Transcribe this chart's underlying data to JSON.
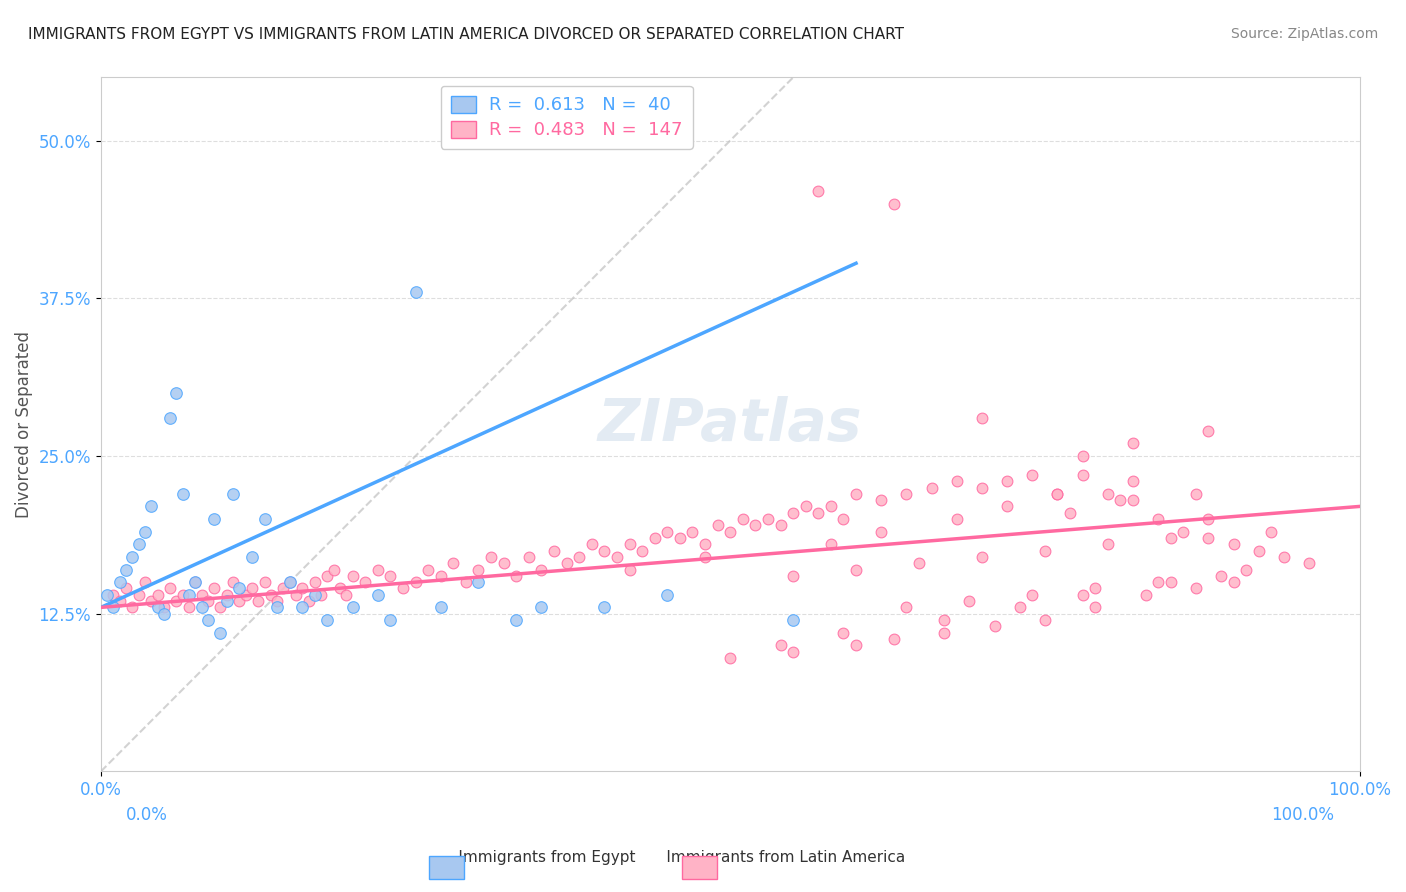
{
  "title": "IMMIGRANTS FROM EGYPT VS IMMIGRANTS FROM LATIN AMERICA DIVORCED OR SEPARATED CORRELATION CHART",
  "source": "Source: ZipAtlas.com",
  "ylabel": "Divorced or Separated",
  "xlabel": "",
  "watermark": "ZIPatlas",
  "legend_egypt": "R =  0.613   N =  40",
  "legend_latin": "R =  0.483   N =  147",
  "r_egypt": 0.613,
  "n_egypt": 40,
  "r_latin": 0.483,
  "n_latin": 147,
  "xlim": [
    0,
    100
  ],
  "ylim": [
    0,
    55
  ],
  "yticks": [
    12.5,
    25.0,
    37.5,
    50.0
  ],
  "xticks": [
    0,
    100
  ],
  "color_egypt": "#a8c8f0",
  "color_egypt_line": "#4da6ff",
  "color_latin": "#ffb3c6",
  "color_latin_line": "#ff69a0",
  "color_diag": "#c0c0c0",
  "background": "#ffffff",
  "egypt_x": [
    0.5,
    1.0,
    1.5,
    2.0,
    2.5,
    3.0,
    3.5,
    4.0,
    4.5,
    5.0,
    5.5,
    6.0,
    6.5,
    7.0,
    7.5,
    8.0,
    8.5,
    9.0,
    9.5,
    10.0,
    10.5,
    11.0,
    12.0,
    13.0,
    14.0,
    15.0,
    16.0,
    17.0,
    18.0,
    20.0,
    22.0,
    23.0,
    25.0,
    27.0,
    30.0,
    33.0,
    35.0,
    40.0,
    45.0,
    55.0
  ],
  "egypt_y": [
    14.0,
    13.0,
    15.0,
    16.0,
    17.0,
    18.0,
    19.0,
    21.0,
    13.0,
    12.5,
    28.0,
    30.0,
    22.0,
    14.0,
    15.0,
    13.0,
    12.0,
    20.0,
    11.0,
    13.5,
    22.0,
    14.5,
    17.0,
    20.0,
    13.0,
    15.0,
    13.0,
    14.0,
    12.0,
    13.0,
    14.0,
    12.0,
    38.0,
    13.0,
    15.0,
    12.0,
    13.0,
    13.0,
    14.0,
    12.0
  ],
  "latin_x": [
    1.0,
    1.5,
    2.0,
    2.5,
    3.0,
    3.5,
    4.0,
    4.5,
    5.0,
    5.5,
    6.0,
    6.5,
    7.0,
    7.5,
    8.0,
    8.5,
    9.0,
    9.5,
    10.0,
    10.5,
    11.0,
    11.5,
    12.0,
    12.5,
    13.0,
    13.5,
    14.0,
    14.5,
    15.0,
    15.5,
    16.0,
    16.5,
    17.0,
    17.5,
    18.0,
    18.5,
    19.0,
    19.5,
    20.0,
    21.0,
    22.0,
    23.0,
    24.0,
    25.0,
    26.0,
    27.0,
    28.0,
    29.0,
    30.0,
    31.0,
    32.0,
    33.0,
    34.0,
    35.0,
    36.0,
    37.0,
    38.0,
    39.0,
    40.0,
    41.0,
    42.0,
    43.0,
    44.0,
    45.0,
    46.0,
    47.0,
    48.0,
    49.0,
    50.0,
    51.0,
    52.0,
    53.0,
    54.0,
    55.0,
    56.0,
    57.0,
    58.0,
    59.0,
    60.0,
    62.0,
    64.0,
    66.0,
    68.0,
    70.0,
    72.0,
    74.0,
    76.0,
    78.0,
    80.0,
    82.0,
    84.0,
    86.0,
    88.0,
    90.0,
    92.0,
    94.0,
    96.0,
    78.0,
    82.0,
    88.0,
    50.0,
    55.0,
    60.0,
    63.0,
    67.0,
    71.0,
    75.0,
    79.0,
    83.0,
    87.0,
    55.0,
    60.0,
    65.0,
    70.0,
    75.0,
    80.0,
    85.0,
    90.0,
    42.0,
    48.0,
    58.0,
    62.0,
    68.0,
    72.0,
    77.0,
    82.0,
    87.0,
    64.0,
    69.0,
    74.0,
    79.0,
    84.0,
    89.0,
    54.0,
    59.0,
    67.0,
    73.0,
    78.0,
    85.0,
    91.0,
    57.0,
    63.0,
    70.0,
    76.0,
    81.0,
    88.0,
    93.0
  ],
  "latin_y": [
    14.0,
    13.5,
    14.5,
    13.0,
    14.0,
    15.0,
    13.5,
    14.0,
    13.0,
    14.5,
    13.5,
    14.0,
    13.0,
    15.0,
    14.0,
    13.5,
    14.5,
    13.0,
    14.0,
    15.0,
    13.5,
    14.0,
    14.5,
    13.5,
    15.0,
    14.0,
    13.5,
    14.5,
    15.0,
    14.0,
    14.5,
    13.5,
    15.0,
    14.0,
    15.5,
    16.0,
    14.5,
    14.0,
    15.5,
    15.0,
    16.0,
    15.5,
    14.5,
    15.0,
    16.0,
    15.5,
    16.5,
    15.0,
    16.0,
    17.0,
    16.5,
    15.5,
    17.0,
    16.0,
    17.5,
    16.5,
    17.0,
    18.0,
    17.5,
    17.0,
    18.0,
    17.5,
    18.5,
    19.0,
    18.5,
    19.0,
    18.0,
    19.5,
    19.0,
    20.0,
    19.5,
    20.0,
    19.5,
    20.5,
    21.0,
    20.5,
    21.0,
    20.0,
    22.0,
    21.5,
    22.0,
    22.5,
    23.0,
    22.5,
    23.0,
    23.5,
    22.0,
    23.5,
    22.0,
    23.0,
    20.0,
    19.0,
    18.5,
    18.0,
    17.5,
    17.0,
    16.5,
    25.0,
    26.0,
    27.0,
    9.0,
    9.5,
    10.0,
    10.5,
    11.0,
    11.5,
    12.0,
    13.0,
    14.0,
    14.5,
    15.5,
    16.0,
    16.5,
    17.0,
    17.5,
    18.0,
    18.5,
    15.0,
    16.0,
    17.0,
    18.0,
    19.0,
    20.0,
    21.0,
    20.5,
    21.5,
    22.0,
    13.0,
    13.5,
    14.0,
    14.5,
    15.0,
    15.5,
    10.0,
    11.0,
    12.0,
    13.0,
    14.0,
    15.0,
    16.0,
    46.0,
    45.0,
    28.0,
    22.0,
    21.5,
    20.0,
    19.0
  ]
}
